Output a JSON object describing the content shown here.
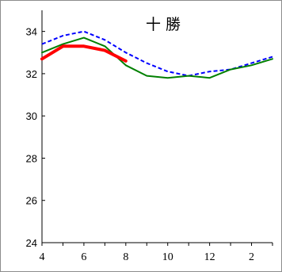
{
  "chart_data": {
    "type": "line",
    "title": "十 勝",
    "x_ticks": [
      {
        "label": "4",
        "x": 0
      },
      {
        "label": "6",
        "x": 2
      },
      {
        "label": "8",
        "x": 4
      },
      {
        "label": "10",
        "x": 6
      },
      {
        "label": "12",
        "x": 8
      },
      {
        "label": "2",
        "x": 10
      }
    ],
    "xlim": [
      0,
      11
    ],
    "ylim": [
      24,
      35
    ],
    "y_ticks": [
      24,
      26,
      28,
      30,
      32,
      34
    ],
    "grid": false,
    "series": [
      {
        "color": "#0000ff",
        "style": "dashed",
        "x": [
          0,
          1,
          2,
          3,
          4,
          5,
          6,
          7,
          8,
          9,
          10,
          11
        ],
        "values": [
          33.4,
          33.8,
          34.0,
          33.6,
          33.0,
          32.5,
          32.1,
          31.9,
          32.1,
          32.2,
          32.5,
          32.8
        ]
      },
      {
        "color": "#008000",
        "style": "solid",
        "x": [
          0,
          1,
          2,
          3,
          4,
          5,
          6,
          7,
          8,
          9,
          10,
          11
        ],
        "values": [
          33.0,
          33.4,
          33.7,
          33.3,
          32.4,
          31.9,
          31.8,
          31.9,
          31.8,
          32.2,
          32.4,
          32.7
        ]
      },
      {
        "color": "#ff0000",
        "style": "bold",
        "x": [
          0,
          1,
          2,
          3,
          4
        ],
        "values": [
          32.7,
          33.3,
          33.3,
          33.1,
          32.6
        ]
      }
    ]
  }
}
